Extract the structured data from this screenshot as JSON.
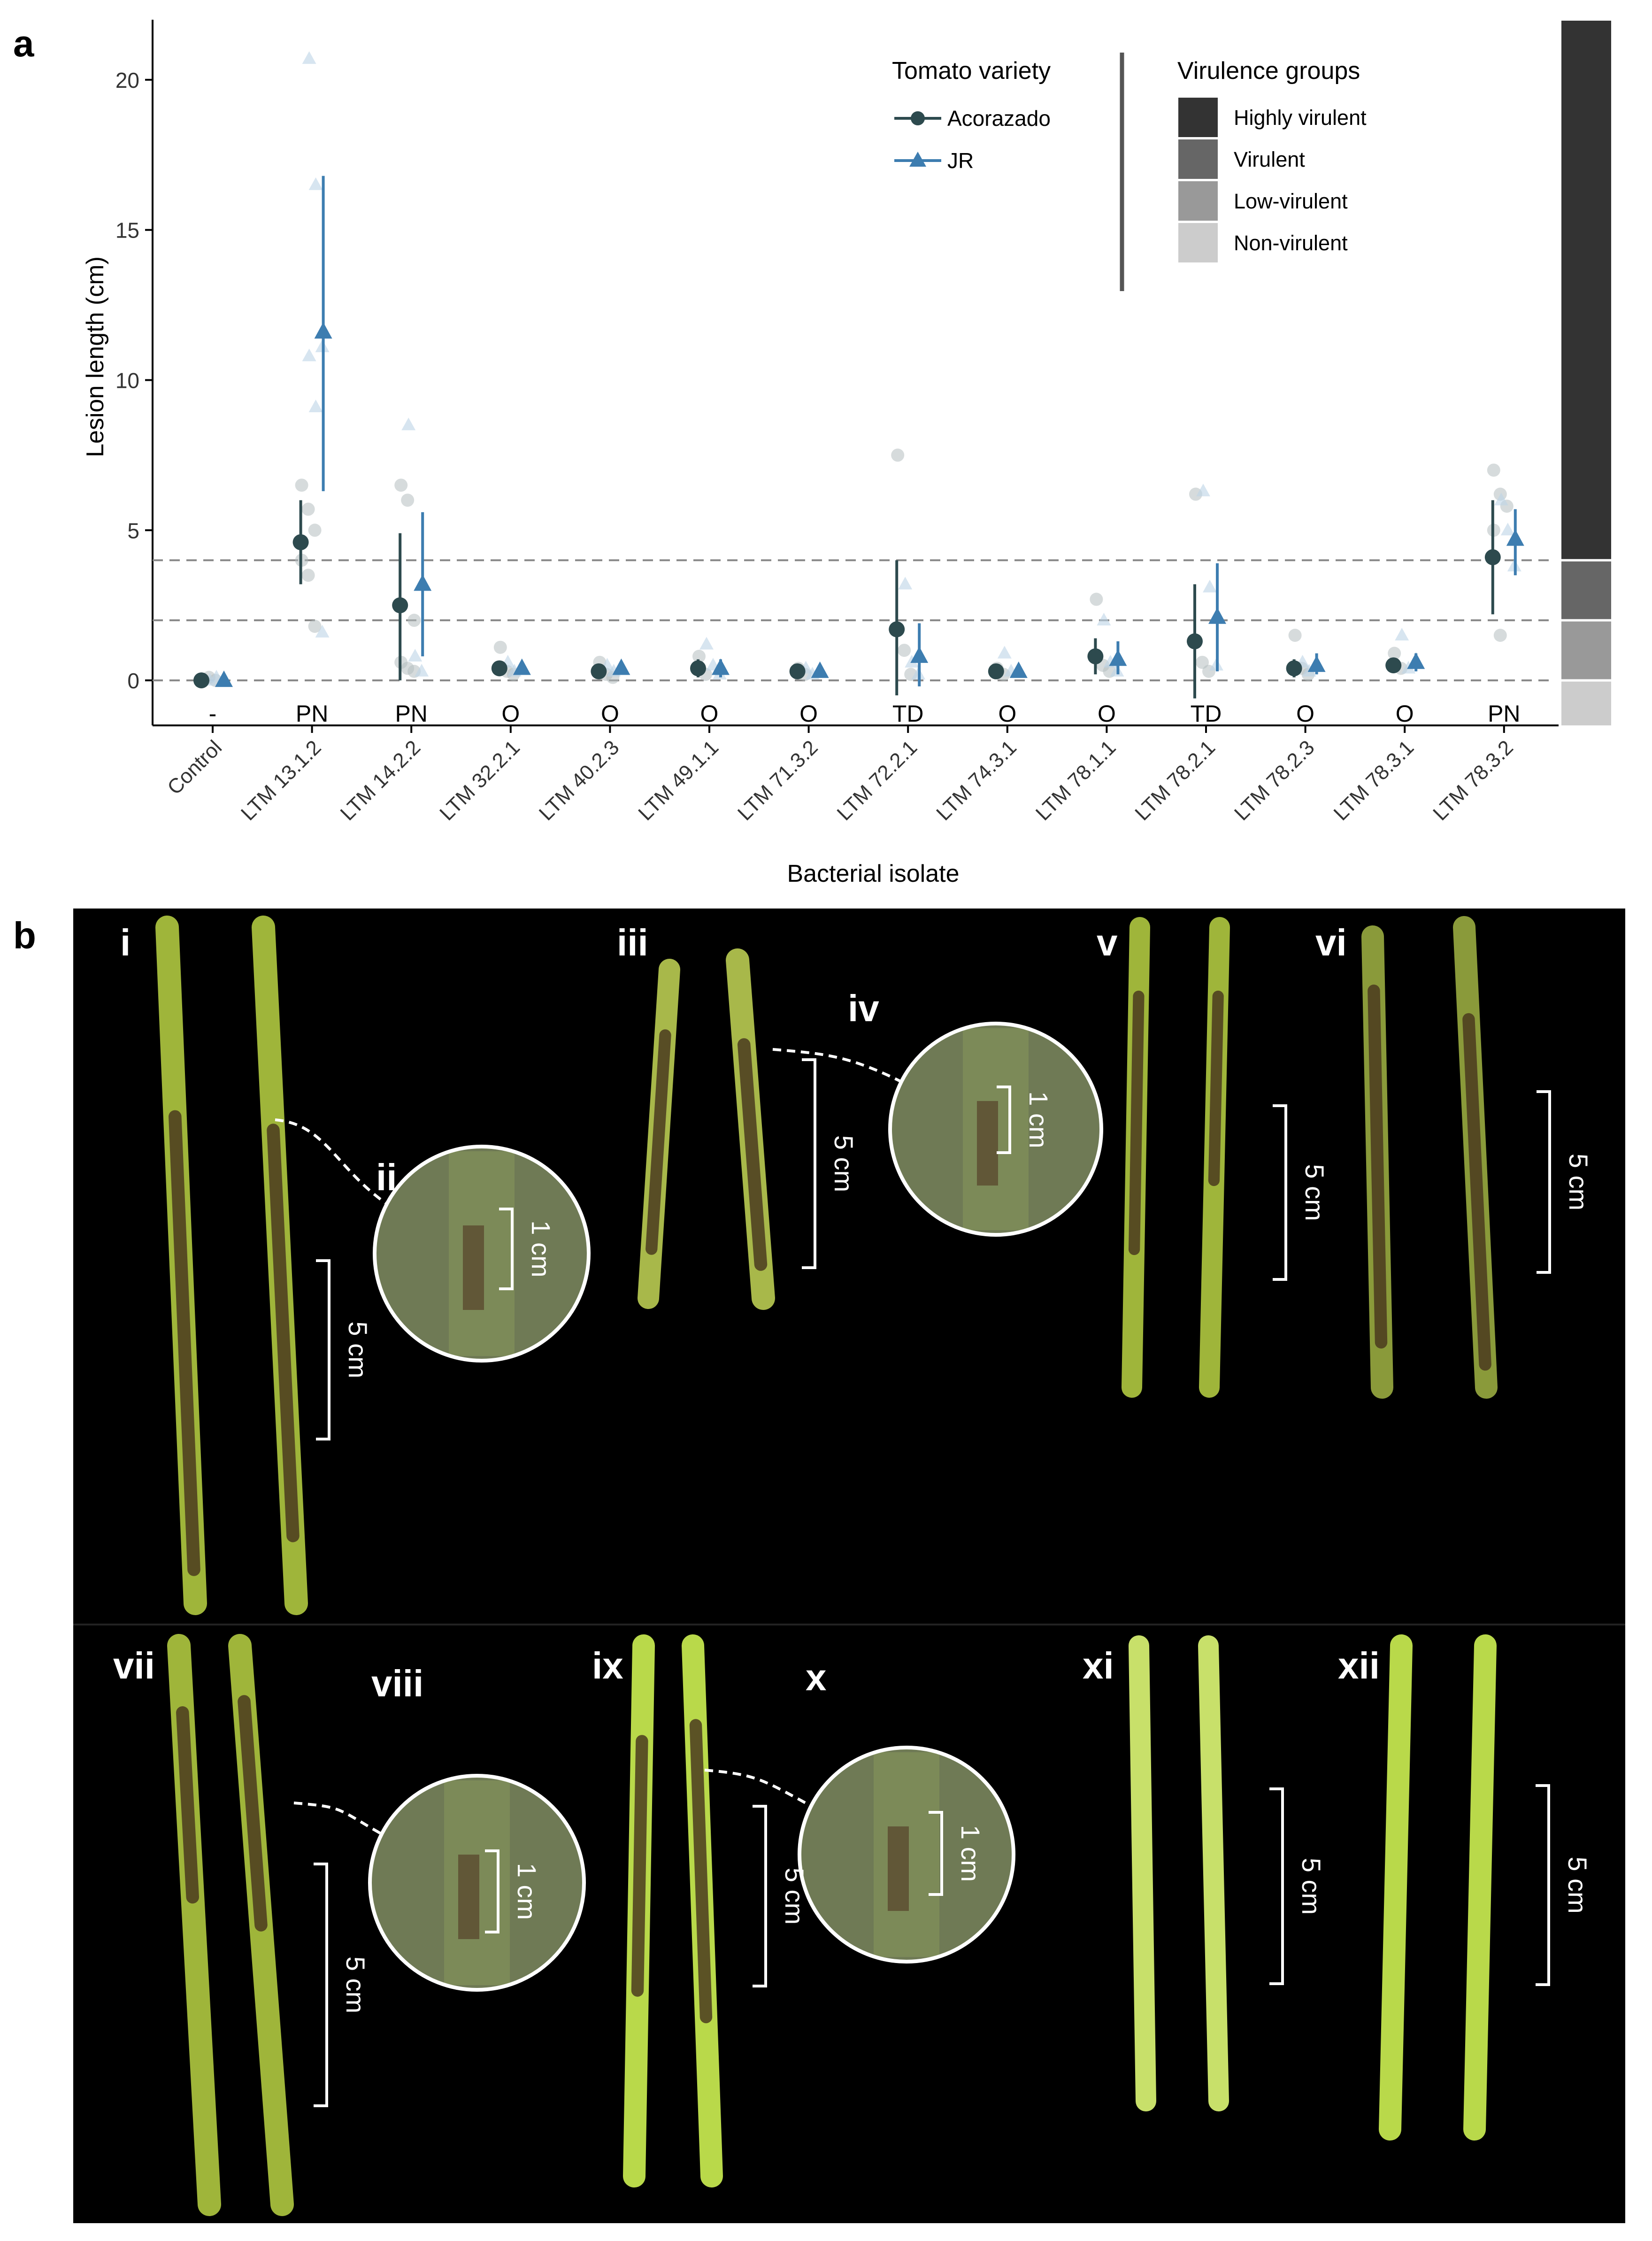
{
  "panel_a_label": "a",
  "panel_b_label": "b",
  "chart_data": {
    "type": "scatter",
    "xlabel": "Bacterial isolate",
    "ylabel": "Lesion length (cm)",
    "ylim": [
      -1.5,
      22
    ],
    "yticks": [
      "0",
      "5",
      "10",
      "15",
      "20"
    ],
    "categories": [
      "Control",
      "LTM 13.1.2",
      "LTM 14.2.2",
      "LTM 32.2.1",
      "LTM 40.2.3",
      "LTM 49.1.1",
      "LTM 71.3.2",
      "LTM 72.2.1",
      "LTM 74.3.1",
      "LTM 78.1.1",
      "LTM 78.2.1",
      "LTM 78.2.3",
      "LTM 78.3.1",
      "LTM 78.3.2"
    ],
    "group_labels": [
      "-",
      "PN",
      "PN",
      "O",
      "O",
      "O",
      "O",
      "TD",
      "O",
      "O",
      "TD",
      "O",
      "O",
      "PN"
    ],
    "thresholds": [
      0,
      2,
      4
    ],
    "series": [
      {
        "name": "Acorazado",
        "color": "#2d4a4e",
        "marker": "circle",
        "mean": [
          0.0,
          4.6,
          2.5,
          0.4,
          0.3,
          0.4,
          0.3,
          1.7,
          0.3,
          0.8,
          1.3,
          0.4,
          0.5,
          4.1
        ],
        "lower": [
          -0.1,
          3.2,
          0.0,
          0.2,
          0.1,
          0.1,
          0.1,
          -0.5,
          0.1,
          0.2,
          -0.6,
          0.1,
          0.3,
          2.2
        ],
        "upper": [
          0.1,
          6.0,
          4.9,
          0.6,
          0.5,
          0.7,
          0.5,
          4.0,
          0.5,
          1.4,
          3.2,
          0.7,
          0.7,
          6.0
        ]
      },
      {
        "name": "JR",
        "color": "#3d7db0",
        "marker": "triangle",
        "mean": [
          0.0,
          11.6,
          3.2,
          0.4,
          0.4,
          0.4,
          0.3,
          0.8,
          0.3,
          0.7,
          2.1,
          0.5,
          0.6,
          4.7
        ],
        "lower": [
          -0.1,
          6.3,
          0.8,
          0.2,
          0.2,
          0.1,
          0.1,
          -0.2,
          0.1,
          0.2,
          0.3,
          0.2,
          0.3,
          3.5
        ],
        "upper": [
          0.1,
          16.8,
          5.6,
          0.6,
          0.6,
          0.7,
          0.5,
          1.9,
          0.5,
          1.3,
          3.9,
          0.9,
          0.9,
          5.7
        ]
      }
    ],
    "raw_points": [
      {
        "series": "Acorazado",
        "values": [
          [
            0.0,
            0.1,
            0.0
          ],
          [
            6.5,
            5.7,
            5.0,
            4.0,
            3.5,
            1.8
          ],
          [
            6.5,
            6.0,
            2.0,
            0.6,
            0.4,
            0.3
          ],
          [
            1.1,
            0.3,
            0.2
          ],
          [
            0.6,
            0.2,
            0.1
          ],
          [
            0.8,
            0.2
          ],
          [
            0.4,
            0.2
          ],
          [
            7.5,
            1.0,
            0.2
          ],
          [
            0.4,
            0.2
          ],
          [
            2.7,
            0.5,
            0.3
          ],
          [
            6.2,
            0.6,
            0.3
          ],
          [
            1.5,
            0.4,
            0.2
          ],
          [
            0.9,
            0.4
          ],
          [
            7.0,
            6.2,
            5.8,
            5.0,
            1.5
          ]
        ]
      },
      {
        "series": "JR",
        "values": [
          [
            0.0,
            0.1,
            0.0
          ],
          [
            20.7,
            16.5,
            11.1,
            10.8,
            9.1,
            1.6
          ],
          [
            8.5,
            0.8,
            0.3
          ],
          [
            0.6,
            0.3
          ],
          [
            0.5,
            0.3
          ],
          [
            1.2,
            0.5,
            0.2
          ],
          [
            0.4,
            0.2
          ],
          [
            3.2,
            0.6,
            0.2
          ],
          [
            0.9,
            0.3
          ],
          [
            2.0,
            0.6,
            0.3
          ],
          [
            6.3,
            3.1,
            0.5
          ],
          [
            0.6,
            0.3
          ],
          [
            1.5,
            0.4
          ],
          [
            6.0,
            5.0,
            3.8
          ]
        ]
      }
    ],
    "legend": {
      "variety_title": "Tomato variety",
      "virulence_title": "Virulence groups",
      "virulence_groups": [
        {
          "name": "Highly virulent",
          "color": "#333333"
        },
        {
          "name": "Virulent",
          "color": "#666666"
        },
        {
          "name": "Low-virulent",
          "color": "#999999"
        },
        {
          "name": "Non-virulent",
          "color": "#cccccc"
        }
      ]
    },
    "grid": false
  },
  "photos": {
    "labels": [
      "i",
      "ii",
      "iii",
      "iv",
      "v",
      "vi",
      "vii",
      "viii",
      "ix",
      "x",
      "xi",
      "xii"
    ],
    "scale_5cm": "5 cm",
    "scale_1cm": "1 cm",
    "colors": {
      "stem_green": "#9fb53a",
      "lesion_brown": "#4a3a1e",
      "bright_green": "#b9d94a"
    }
  }
}
